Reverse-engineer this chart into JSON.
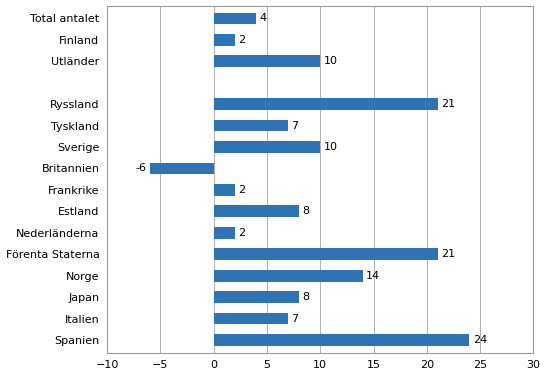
{
  "categories": [
    "Spanien",
    "Italien",
    "Japan",
    "Norge",
    "Förenta Staterna",
    "Nederländerna",
    "Estland",
    "Frankrike",
    "Britannien",
    "Sverige",
    "Tyskland",
    "Ryssland",
    "",
    "Utländer",
    "Finland",
    "Total antalet"
  ],
  "values": [
    24,
    7,
    8,
    14,
    21,
    2,
    8,
    2,
    -6,
    10,
    7,
    21,
    0,
    10,
    2,
    4
  ],
  "bar_color": "#2E74B5",
  "xlim": [
    -10,
    30
  ],
  "xticks": [
    -10,
    -5,
    0,
    5,
    10,
    15,
    20,
    25,
    30
  ],
  "background_color": "#ffffff",
  "grid_color": "#b0b0b0",
  "label_fontsize": 8,
  "tick_fontsize": 8,
  "bar_height": 0.55
}
